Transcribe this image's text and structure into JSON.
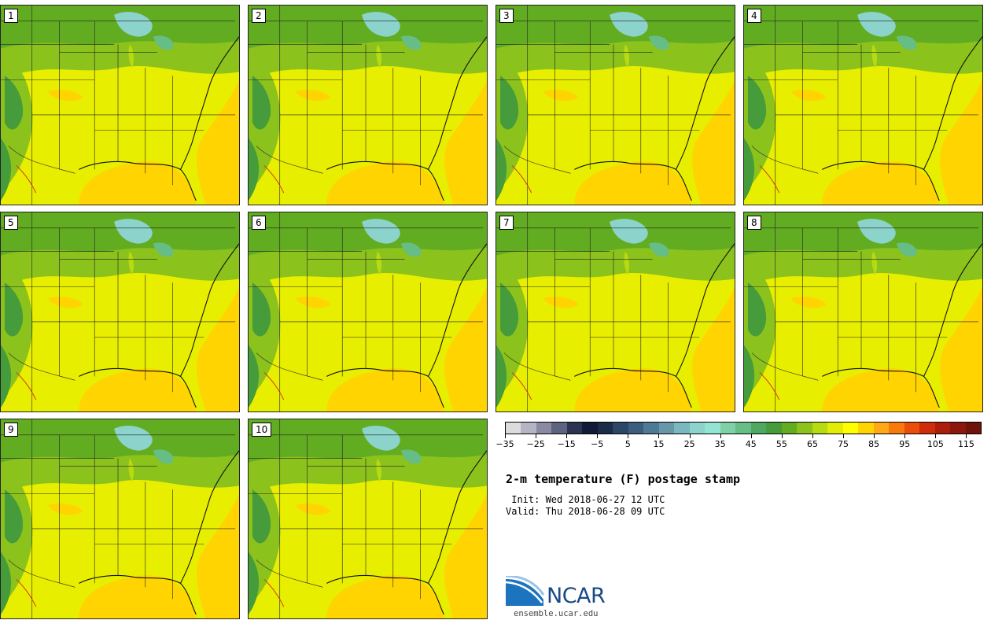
{
  "members": [
    "1",
    "2",
    "3",
    "4",
    "5",
    "6",
    "7",
    "8",
    "9",
    "10"
  ],
  "colorbar": {
    "colors": [
      "#dcdcdc",
      "#b4b4c4",
      "#8a8aa2",
      "#5e6480",
      "#2c3452",
      "#111a36",
      "#1a2c48",
      "#2b4765",
      "#3c5d7e",
      "#4f7a96",
      "#6898a8",
      "#7ab7be",
      "#8cd3cc",
      "#94e4d4",
      "#7fd0a4",
      "#66bd86",
      "#4fa862",
      "#469c3a",
      "#62ac22",
      "#8cc21c",
      "#b8da10",
      "#e2ec06",
      "#ffff00",
      "#ffd400",
      "#ffa818",
      "#f77a0c",
      "#ea4e0a",
      "#cf2c0a",
      "#ac1e0c",
      "#8a180c",
      "#6e140a"
    ],
    "tick_values": [
      "−35",
      "−25",
      "−15",
      "−5",
      "5",
      "15",
      "25",
      "35",
      "45",
      "55",
      "65",
      "75",
      "85",
      "95",
      "105",
      "115"
    ]
  },
  "title": "2-m temperature (F) postage stamp",
  "init_line": " Init: Wed 2018-06-27 12 UTC",
  "valid_line": "Valid: Thu 2018-06-28 09 UTC",
  "logo": {
    "word": "NCAR",
    "url": "ensemble.ucar.edu"
  }
}
